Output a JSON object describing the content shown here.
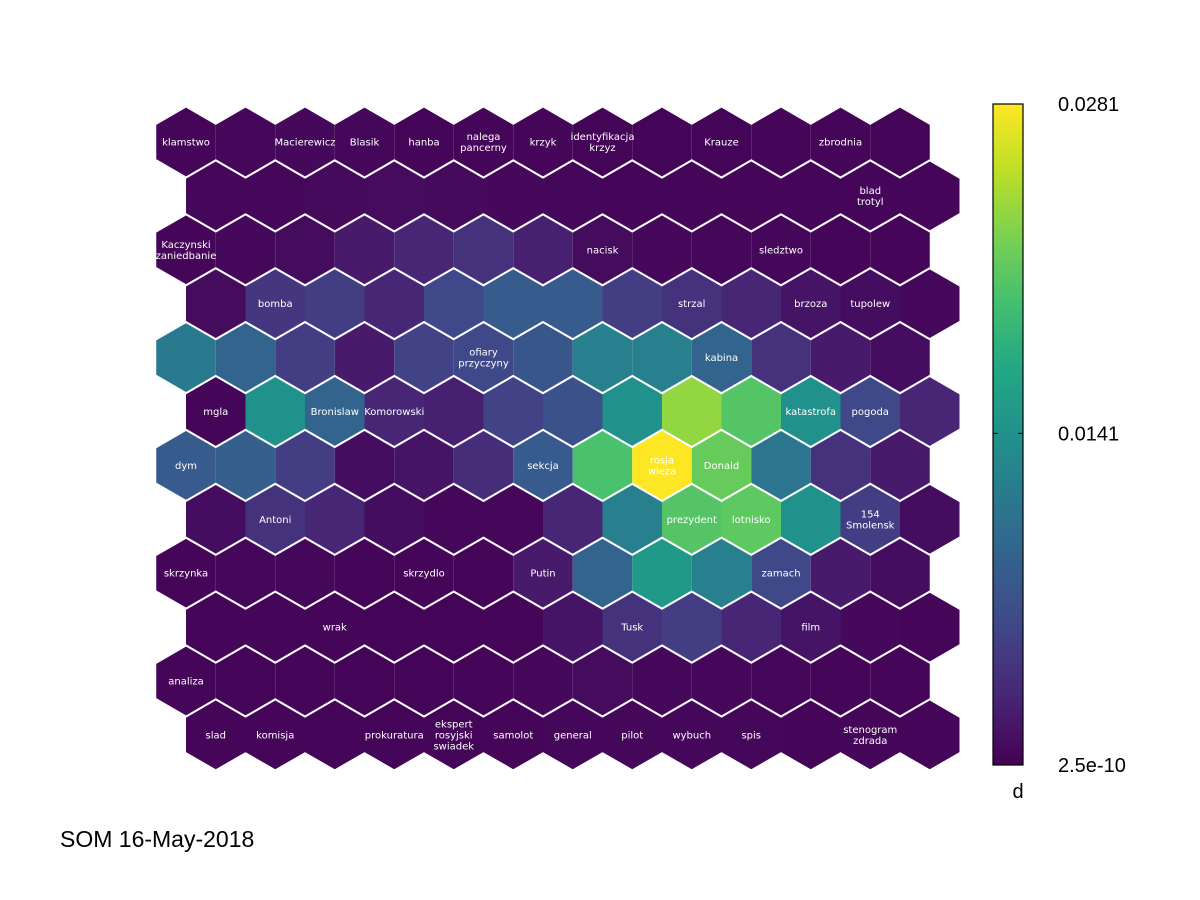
{
  "footer_text": "SOM 16-May-2018",
  "chart_data": {
    "type": "heatmap",
    "subtype": "som-hexagonal-umatrix",
    "grid": {
      "columns": 13,
      "rows": 12
    },
    "colormap": "viridis",
    "colorbar": {
      "label": "d",
      "min": 2.5e-10,
      "max": 0.0281,
      "tick_labels": [
        "0.0281",
        "0.0141",
        "2.5e-10"
      ],
      "tick_values": [
        0.0281,
        0.0141,
        2.5e-10
      ]
    },
    "values": [
      [
        0.0004,
        0.0005,
        0.0006,
        0.0005,
        0.0004,
        0.0004,
        0.0004,
        0.0003,
        0.0003,
        0.0003,
        0.0004,
        0.0004,
        0.0003
      ],
      [
        0.0005,
        0.0005,
        0.0007,
        0.0008,
        0.0007,
        0.0006,
        0.0005,
        0.0004,
        0.0004,
        0.0004,
        0.0004,
        0.0004,
        0.0004
      ],
      [
        0.0004,
        0.0006,
        0.0008,
        0.002,
        0.003,
        0.004,
        0.0025,
        0.0008,
        0.0006,
        0.0005,
        0.0005,
        0.0004,
        0.0004
      ],
      [
        0.0008,
        0.0045,
        0.005,
        0.003,
        0.006,
        0.008,
        0.008,
        0.005,
        0.004,
        0.003,
        0.0015,
        0.001,
        0.0006
      ],
      [
        0.0115,
        0.009,
        0.005,
        0.002,
        0.0055,
        0.006,
        0.0075,
        0.012,
        0.012,
        0.009,
        0.004,
        0.002,
        0.001
      ],
      [
        0.0004,
        0.014,
        0.009,
        0.003,
        0.0025,
        0.0055,
        0.007,
        0.014,
        0.0235,
        0.0205,
        0.014,
        0.006,
        0.003
      ],
      [
        0.008,
        0.0085,
        0.005,
        0.001,
        0.0015,
        0.0035,
        0.008,
        0.02,
        0.0281,
        0.0215,
        0.011,
        0.004,
        0.002
      ],
      [
        0.001,
        0.004,
        0.003,
        0.001,
        0.0005,
        0.0005,
        0.003,
        0.012,
        0.0205,
        0.021,
        0.014,
        0.005,
        0.001
      ],
      [
        0.0004,
        0.0005,
        0.0005,
        0.0004,
        0.0004,
        0.0004,
        0.002,
        0.009,
        0.015,
        0.012,
        0.006,
        0.002,
        0.001
      ],
      [
        0.0004,
        0.0004,
        0.0004,
        0.0003,
        0.0003,
        0.0004,
        0.0015,
        0.004,
        0.005,
        0.003,
        0.0015,
        0.0006,
        0.0004
      ],
      [
        0.0004,
        0.0004,
        0.0004,
        0.0003,
        0.0003,
        0.0004,
        0.0006,
        0.0008,
        0.0006,
        0.0005,
        0.0005,
        0.0004,
        0.0004
      ],
      [
        0.0004,
        0.0004,
        0.0004,
        0.0003,
        0.0003,
        0.0004,
        0.0005,
        0.0005,
        0.0005,
        0.0005,
        0.0004,
        0.0004,
        0.0004
      ]
    ],
    "cell_labels": [
      {
        "row": 0,
        "col": 0,
        "text": "klamstwo"
      },
      {
        "row": 0,
        "col": 2,
        "text": "Macierewicz"
      },
      {
        "row": 0,
        "col": 3,
        "text": "Blasik"
      },
      {
        "row": 0,
        "col": 4,
        "text": "hanba"
      },
      {
        "row": 0,
        "col": 5,
        "text": "nalega\npancerny"
      },
      {
        "row": 0,
        "col": 6,
        "text": "krzyk"
      },
      {
        "row": 0,
        "col": 7,
        "text": "identyfikacja\nkrzyz"
      },
      {
        "row": 0,
        "col": 9,
        "text": "Krauze"
      },
      {
        "row": 0,
        "col": 11,
        "text": "zbrodnia"
      },
      {
        "row": 1,
        "col": 11,
        "text": "blad\ntrotyl"
      },
      {
        "row": 2,
        "col": 0,
        "text": "Kaczynski\nzaniedbanie"
      },
      {
        "row": 2,
        "col": 7,
        "text": "nacisk"
      },
      {
        "row": 2,
        "col": 10,
        "text": "sledztwo"
      },
      {
        "row": 3,
        "col": 1,
        "text": "bomba"
      },
      {
        "row": 3,
        "col": 8,
        "text": "strzal"
      },
      {
        "row": 3,
        "col": 10,
        "text": "brzoza"
      },
      {
        "row": 3,
        "col": 11,
        "text": "tupolew"
      },
      {
        "row": 4,
        "col": 5,
        "text": "ofiary\nprzyczyny"
      },
      {
        "row": 4,
        "col": 9,
        "text": "kabina"
      },
      {
        "row": 5,
        "col": 0,
        "text": "mgla"
      },
      {
        "row": 5,
        "col": 2,
        "text": "Bronislaw"
      },
      {
        "row": 5,
        "col": 3,
        "text": "Komorowski"
      },
      {
        "row": 5,
        "col": 10,
        "text": "katastrofa"
      },
      {
        "row": 5,
        "col": 11,
        "text": "pogoda"
      },
      {
        "row": 6,
        "col": 0,
        "text": "dym"
      },
      {
        "row": 6,
        "col": 6,
        "text": "sekcja"
      },
      {
        "row": 6,
        "col": 8,
        "text": "rosja\nwieza"
      },
      {
        "row": 6,
        "col": 9,
        "text": "Donald"
      },
      {
        "row": 7,
        "col": 1,
        "text": "Antoni"
      },
      {
        "row": 7,
        "col": 8,
        "text": "prezydent"
      },
      {
        "row": 7,
        "col": 9,
        "text": "lotnisko"
      },
      {
        "row": 7,
        "col": 11,
        "text": "154\nSmolensk"
      },
      {
        "row": 8,
        "col": 0,
        "text": "skrzynka"
      },
      {
        "row": 8,
        "col": 4,
        "text": "skrzydlo"
      },
      {
        "row": 8,
        "col": 6,
        "text": "Putin"
      },
      {
        "row": 8,
        "col": 10,
        "text": "zamach"
      },
      {
        "row": 9,
        "col": 2,
        "text": "wrak"
      },
      {
        "row": 9,
        "col": 7,
        "text": "Tusk"
      },
      {
        "row": 9,
        "col": 10,
        "text": "film"
      },
      {
        "row": 10,
        "col": 0,
        "text": "analiza"
      },
      {
        "row": 11,
        "col": 0,
        "text": "slad"
      },
      {
        "row": 11,
        "col": 1,
        "text": "komisja"
      },
      {
        "row": 11,
        "col": 3,
        "text": "prokuratura"
      },
      {
        "row": 11,
        "col": 4,
        "text": "ekspert\nrosyjski\nswiadek"
      },
      {
        "row": 11,
        "col": 5,
        "text": "samolot"
      },
      {
        "row": 11,
        "col": 6,
        "text": "general"
      },
      {
        "row": 11,
        "col": 7,
        "text": "pilot"
      },
      {
        "row": 11,
        "col": 8,
        "text": "wybuch"
      },
      {
        "row": 11,
        "col": 9,
        "text": "spis"
      },
      {
        "row": 11,
        "col": 11,
        "text": "stenogram\nzdrada"
      }
    ]
  }
}
